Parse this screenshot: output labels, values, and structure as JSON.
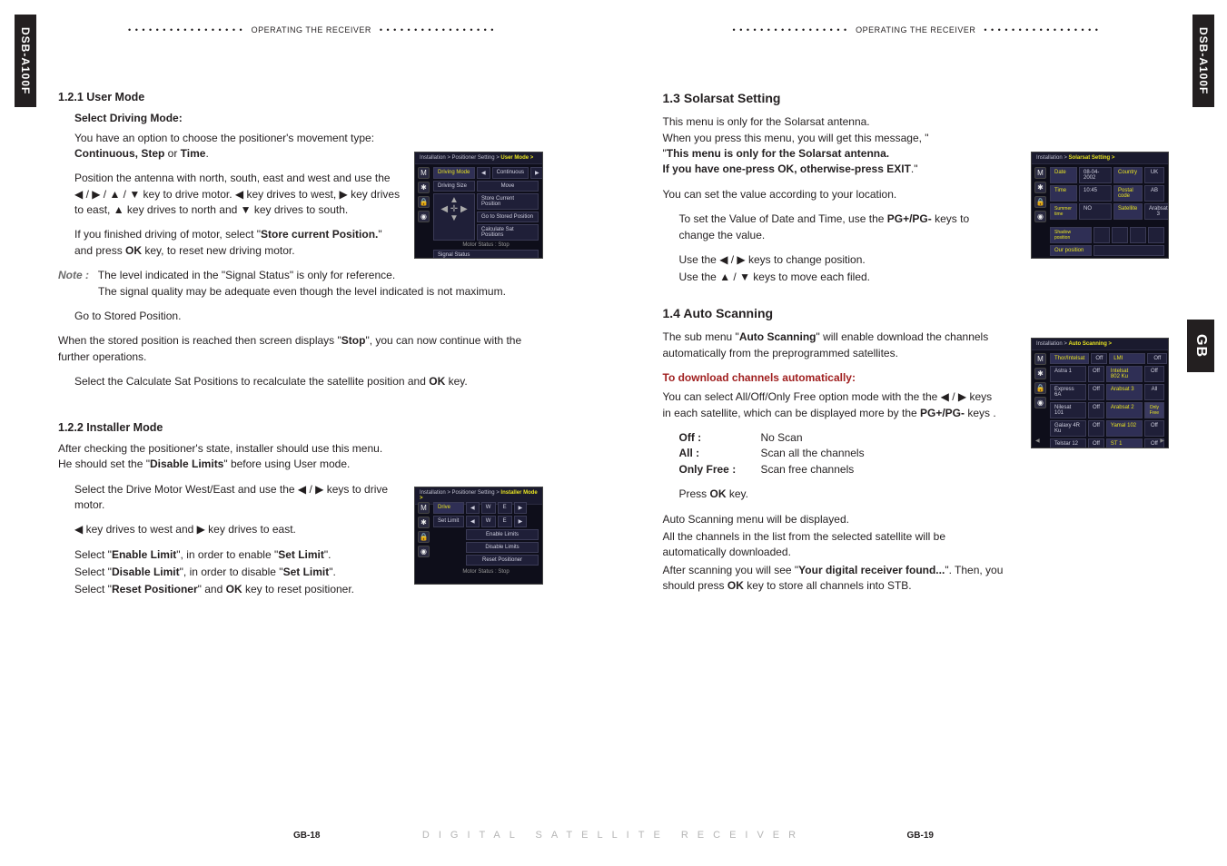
{
  "spine_tabs": {
    "left": "DSB-A100F",
    "rightTop": "DSB-A100F",
    "rightMid": "GB"
  },
  "header": {
    "dots": "• • • • • • • • • • • • • • • • •",
    "text": "OPERATING THE RECEIVER"
  },
  "left_page": {
    "s121_heading": "1.2.1 User Mode",
    "select_drive_heading": "Select Driving Mode:",
    "p1": "You have an option to choose the positioner's movement type: ",
    "p1_bold": "Continuous, Step ",
    "p1_tail": "or ",
    "p1_time": "Time",
    "p1_period": ".",
    "p2_a": "Position the antenna with north, south, east and west and use the ◀ / ▶ / ▲ / ▼ key to drive motor. ◀ key drives to west, ▶ key drives to east, ▲ key drives to north and ▼ key drives to south.",
    "p3_a": "If you finished driving of motor, select \"",
    "p3_b": "Store current Position.",
    "p3_c": "\" and press ",
    "p3_ok": "OK",
    "p3_d": " key, to reset new driving motor.",
    "note_label": "Note :",
    "note1": "The level indicated in the \"Signal Status\" is only for reference.",
    "note2": "The signal quality may be adequate even though the level indicated is not maximum.",
    "stored_pos": "Go to Stored Position.",
    "p4_a": "When the stored position is reached then screen displays \"",
    "p4_b": "Stop",
    "p4_c": "\", you can now continue with the further operations.",
    "p5_a": "Select the Calculate Sat Positions to recalculate the satellite position and ",
    "p5_ok": "OK",
    "p5_b": " key.",
    "s122_heading": "1.2.2 Installer Mode",
    "p6_a": "After checking the positioner's state, installer should use this menu. He should set the \"",
    "p6_b": "Disable Limits",
    "p6_c": "\" before using User mode.",
    "p7_a": "Select the Drive Motor West/East and use the ◀ / ▶ keys to drive motor.",
    "p8": "◀ key drives to west and ▶ key drives to east.",
    "p9_a": "Select \"",
    "p9_b": "Enable Limit",
    "p9_c": "\", in order to enable \"",
    "p9_d": "Set Limit",
    "p9_e": "\".",
    "p10_a": "Select \"",
    "p10_b": "Disable Limit",
    "p10_c": "\", in order to disable \"",
    "p10_d": "Set Limit",
    "p10_e": "\".",
    "p11_a": "Select \"",
    "p11_b": "Reset Positioner",
    "p11_c": "\" and ",
    "p11_ok": "OK",
    "p11_d": " key to reset positioner.",
    "page_no": "GB-18"
  },
  "right_page": {
    "s13_heading": "1.3 Solarsat Setting",
    "p13_a": "This menu is only for the Solarsat antenna.",
    "p13_b": "When you press this menu, you will get this message, \"",
    "p13_c": "This menu is only for the Solarsat antenna.",
    "p13_d": "If you have one-press OK, otherwise-press EXIT",
    "p13_e": ".\"",
    "p13_f": "You can set the value according to your location.",
    "p13_g_a": "To set the Value of Date and Time, use the ",
    "p13_g_b": "PG+/PG-",
    "p13_g_c": " keys to change the value.",
    "p13_h": "Use the ◀ / ▶ keys to change position.",
    "p13_i": "Use the ▲ / ▼ keys to move each filed.",
    "s14_heading": "1.4 Auto Scanning",
    "p14_a_a": "The sub menu \"",
    "p14_a_b": "Auto Scanning",
    "p14_a_c": "\" will enable download the channels automatically from the preprogrammed satellites.",
    "dl_heading": "To download channels automatically:",
    "p14_b_a": "You can select All/Off/Only Free option mode with the the ◀ / ▶ keys in each satellite, which can be displayed more by the ",
    "p14_b_b": "PG+/PG-",
    "p14_b_c": " keys .",
    "defs": {
      "off_l": "Off :",
      "off_v": "No Scan",
      "all_l": "All  :",
      "all_v": "Scan all the channels",
      "only_l": "Only Free :",
      "only_v": "Scan free channels"
    },
    "press_ok_a": "Press ",
    "press_ok_b": "OK",
    "press_ok_c": " key.",
    "p14_c": "Auto Scanning menu will be displayed.",
    "p14_d": "All the channels in the list from the selected satellite will be automatically downloaded.",
    "p14_e_a": "After scanning you will see \"",
    "p14_e_b": "Your digital receiver found...",
    "p14_e_c": "\". Then, you should press ",
    "p14_e_ok": "OK",
    "p14_e_d": " key to store all channels into STB.",
    "page_no": "GB-19"
  },
  "thumbs": {
    "user_mode": {
      "title_a": "Installation > Positioner Setting >",
      "title_b": "User Mode >",
      "rows": {
        "drive_mode": "Driving Mode",
        "cont": "Continuous",
        "drive_size": "Driving Size",
        "move": "Move",
        "store": "Store Current Position",
        "goto": "Go to Stored Position",
        "calc": "Calculate Sat Positions",
        "motor": "Motor Status : Stop",
        "signal": "Signal Status"
      }
    },
    "installer": {
      "title_a": "Installation > Positioner Setting >",
      "title_b": "Installer Mode >",
      "drive": "Drive",
      "setlimit": "Set Limit",
      "enable": "Enable Limits",
      "disable": "Disable Limits",
      "reset": "Reset Positioner",
      "motor": "Motor Status : Stop"
    },
    "solarsat": {
      "title_a": "Installation >",
      "title_b": "Solarsat Setting >",
      "date_l": "Date",
      "date_v": "08-04-2002",
      "time_l": "Time",
      "time_v": "10:45",
      "summer_l": "Summer time",
      "summer_v": "NO",
      "country_l": "Country",
      "country_v": "UK",
      "post_l": "Postal code",
      "post_v": "AB",
      "sat_l": "Satellite",
      "sat_v": "Arabsat 3",
      "shadow": "Shadow position",
      "ourpos": "Our position"
    },
    "auto": {
      "title_a": "Installation >",
      "title_b": "Auto Scanning >",
      "left_col": [
        "Thor/Intelsat",
        "Astra 1",
        "Express 6A",
        "Nilesat 101",
        "Galaxy 4R Ku",
        "Telstar 12",
        "Telstar 5 Ku",
        "Optus B1"
      ],
      "left_vals": [
        "Off",
        "Off",
        "Off",
        "Off",
        "Off",
        "Off",
        "Off",
        "Off"
      ],
      "right_col": [
        "LMI",
        "Intelsat 802 Ku",
        "Arabsat 3",
        "Arabsat 2",
        "Yamal 102",
        "ST 1",
        "Insat 2E/3B",
        "Panamsat1710"
      ],
      "right_vals": [
        "Off",
        "Off",
        "All",
        "Only Free",
        "Off",
        "Off",
        "Off",
        "Off"
      ]
    }
  },
  "footer_spread": "DIGITAL SATELLITE RECEIVER"
}
